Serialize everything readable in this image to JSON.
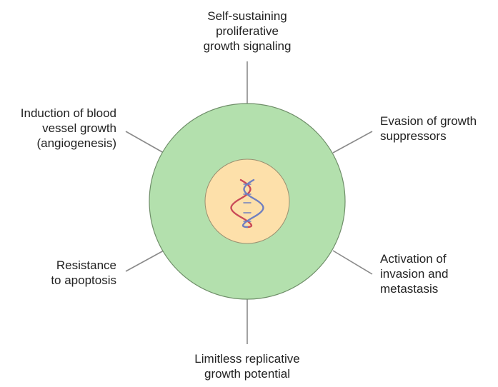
{
  "colors": {
    "outer_ring": "#b3e0ad",
    "outer_ring_stroke": "#6f8e69",
    "nucleus": "#fde0aa",
    "nucleus_stroke": "#9a8f70",
    "connector": "#8a8a8a",
    "dna_strand_a": "#c94b58",
    "dna_strand_b": "#6f7fc0",
    "text": "#222222"
  },
  "center_icon": "dna-double-helix-icon",
  "hallmarks": {
    "top": {
      "lines": [
        "Self-sustaining",
        "proliferative",
        "growth signaling"
      ]
    },
    "upper_left": {
      "lines": [
        "Induction of blood",
        "vessel growth",
        "(angiogenesis)"
      ]
    },
    "upper_right": {
      "lines": [
        "Evasion of growth",
        "suppressors"
      ]
    },
    "lower_left": {
      "lines": [
        "Resistance",
        "to apoptosis"
      ]
    },
    "lower_right": {
      "lines": [
        "Activation of",
        "invasion and",
        "metastasis"
      ]
    },
    "bottom": {
      "lines": [
        "Limitless replicative",
        "growth potential"
      ]
    }
  }
}
